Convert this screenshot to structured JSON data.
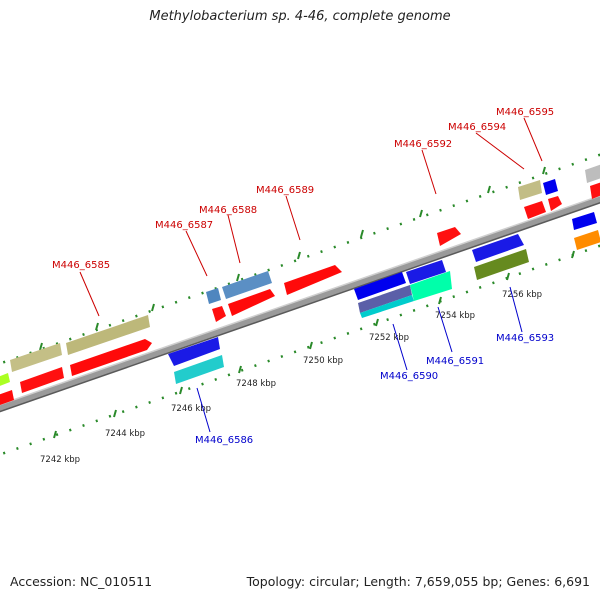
{
  "title": "Methylobacterium sp. 4-46, complete genome",
  "footer": {
    "accession": "Accession: NC_010511",
    "summary": "Topology: circular; Length: 7,659,055 bp; Genes: 6,691"
  },
  "colors": {
    "label_forward": "#cc0000",
    "label_reverse": "#0000cc",
    "backbone": "#888888",
    "tick": "#2a8a2a"
  },
  "scale_labels": [
    "7242 kbp",
    "7244 kbp",
    "7246 kbp",
    "7248 kbp",
    "7250 kbp",
    "7252 kbp",
    "7254 kbp",
    "7256 kbp"
  ],
  "genes_forward": [
    {
      "label": "M446_6585",
      "color": "#ff0000"
    },
    {
      "label": "M446_6587",
      "color": "#ff0000"
    },
    {
      "label": "M446_6588",
      "color": "#ff0000"
    },
    {
      "label": "M446_6589",
      "color": "#ff0000"
    },
    {
      "label": "M446_6592",
      "color": "#ff0000"
    },
    {
      "label": "M446_6594",
      "color": "#ff0000"
    },
    {
      "label": "M446_6595",
      "color": "#0000ee"
    }
  ],
  "genes_reverse": [
    {
      "label": "M446_6586",
      "color": "#00cccc"
    },
    {
      "label": "M446_6590",
      "color": "#00dddd"
    },
    {
      "label": "M446_6591",
      "color": "#00ffaa"
    },
    {
      "label": "M446_6593",
      "color": "#558800"
    }
  ]
}
